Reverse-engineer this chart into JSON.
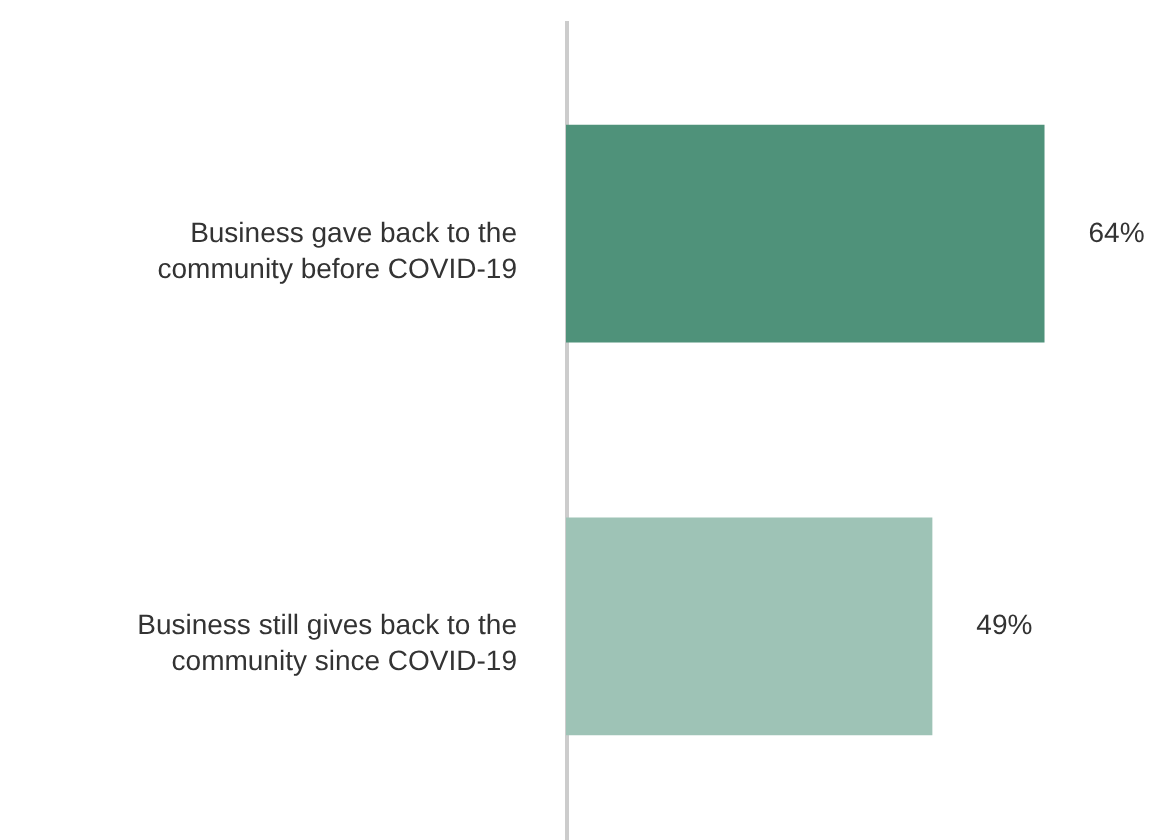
{
  "chart_data": {
    "type": "bar",
    "orientation": "horizontal",
    "categories": [
      "Business gave back to the community before COVID-19",
      "Business still gives back to the community since COVID-19"
    ],
    "values": [
      64,
      49
    ],
    "colors": [
      "#4f927a",
      "#9ec3b6"
    ],
    "value_labels": [
      "64%",
      "49%"
    ]
  }
}
